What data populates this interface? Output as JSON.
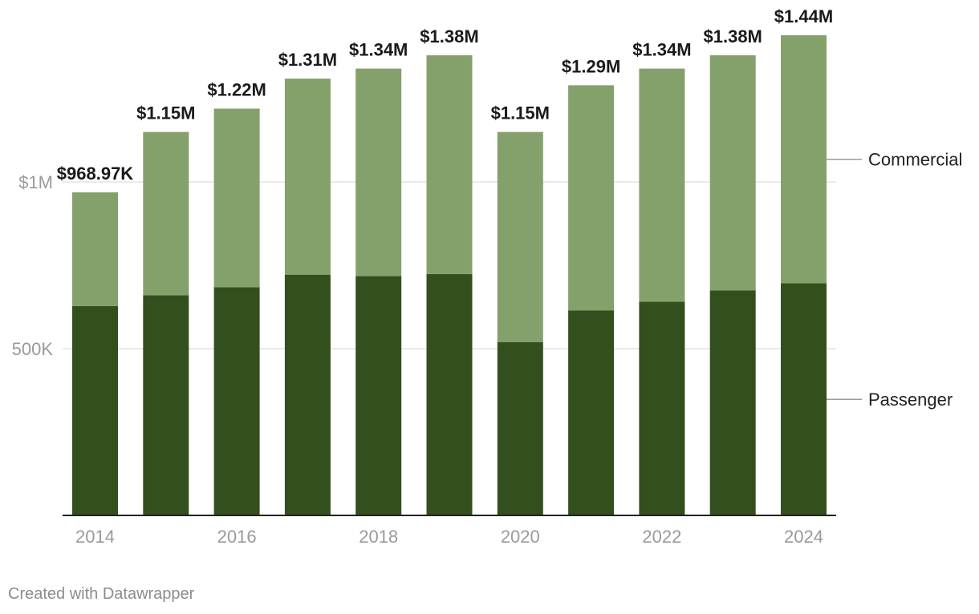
{
  "chart_data": {
    "type": "bar",
    "stacked": true,
    "title": "",
    "xlabel": "",
    "ylabel": "",
    "ylim": [
      0,
      1440000
    ],
    "categories": [
      "2014",
      "2015",
      "2016",
      "2017",
      "2018",
      "2019",
      "2020",
      "2021",
      "2022",
      "2023",
      "2024"
    ],
    "x_tick_labels": [
      "2014",
      "2016",
      "2018",
      "2020",
      "2022",
      "2024"
    ],
    "y_ticks": [
      500000,
      1000000
    ],
    "y_tick_labels": [
      "500K",
      "$1M"
    ],
    "grid": true,
    "series": [
      {
        "name": "Passenger",
        "color": "#344f1e",
        "values": [
          628000,
          660000,
          684000,
          722000,
          718000,
          724000,
          520000,
          615000,
          641000,
          675000,
          696000
        ]
      },
      {
        "name": "Commercial",
        "color": "#84a16b",
        "values": [
          340970,
          490000,
          536000,
          588000,
          622000,
          656000,
          630000,
          675000,
          699000,
          705000,
          744000
        ]
      }
    ],
    "totals": [
      968970,
      1150000,
      1220000,
      1310000,
      1340000,
      1380000,
      1150000,
      1290000,
      1340000,
      1380000,
      1440000
    ],
    "total_labels": [
      "$968.97K",
      "$1.15M",
      "$1.22M",
      "$1.31M",
      "$1.34M",
      "$1.38M",
      "$1.15M",
      "$1.29M",
      "$1.34M",
      "$1.38M",
      "$1.44M"
    ],
    "legend": [
      "Commercial",
      "Passenger"
    ],
    "legend_placement": "right"
  },
  "footer": {
    "credit": "Created with Datawrapper"
  }
}
